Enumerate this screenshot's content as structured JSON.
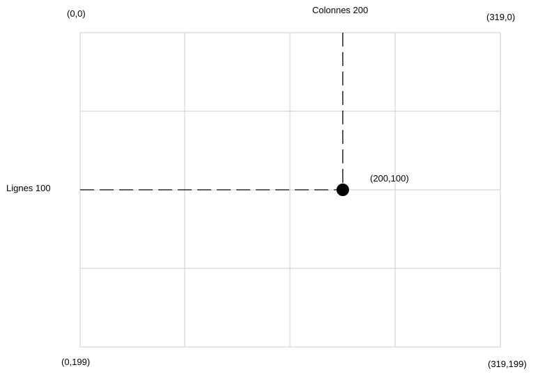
{
  "grid": {
    "columns": 4,
    "rows": 4,
    "line_color": "#cccccc"
  },
  "corners": {
    "top_left": "(0,0)",
    "top_right": "(319,0)",
    "bottom_left": "(0,199)",
    "bottom_right": "(319,199)"
  },
  "guides": {
    "column_label": "Colonnes 200",
    "row_label": "Lignes 100",
    "color": "#000000"
  },
  "point": {
    "label": "(200,100)",
    "x": 200,
    "y": 100,
    "color": "#000000"
  },
  "coordinate_space": {
    "x_max": 319,
    "y_max": 199
  }
}
